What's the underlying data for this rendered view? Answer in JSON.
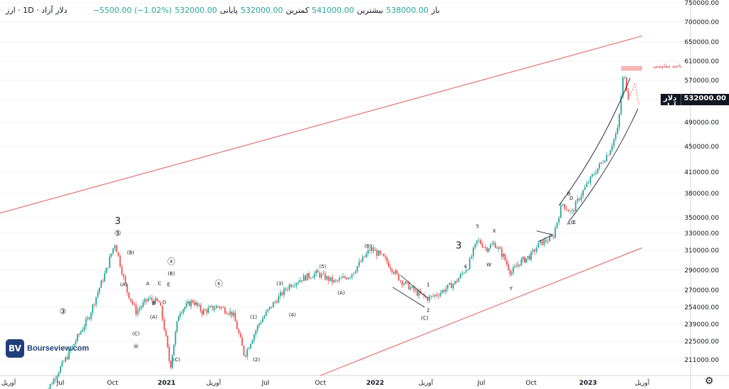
{
  "header": {
    "symbol_title": "دلار آزاد · 1D · ارز",
    "ohlc_open_label": "باز",
    "ohlc_open": "538000.00",
    "ohlc_high_label": "بیشترین",
    "ohlc_high": "541000.00",
    "ohlc_low_label": "کمترین",
    "ohlc_low": "532000.00",
    "ohlc_close_label": "پایانی",
    "ohlc_close": "532000.00",
    "ohlc_change": "−5500.00 (−1.02%)"
  },
  "price_tag": {
    "label": "دلار آزاد",
    "value": "532000.00"
  },
  "colors": {
    "up": "#26a69a",
    "down": "#ef5350",
    "channel": "#e57373",
    "resistance_fill": "#f8b4b4",
    "resistance_text": "#e53935",
    "live_dot": "#26a69a"
  },
  "logo": {
    "mark": "BV",
    "text": "Bourseview.com"
  },
  "annotations": {
    "resistance_label": "ناحیه مقاومتی"
  },
  "chart_data": {
    "type": "candlestick",
    "title": "دلار آزاد",
    "x_range": [
      "2019-03",
      "2023-04"
    ],
    "y_range": [
      200000,
      760000
    ],
    "y_ticks": [
      750000,
      700000,
      650000,
      610000,
      570000,
      532000,
      490000,
      450000,
      410000,
      380000,
      350000,
      330000,
      310000,
      290000,
      270000,
      254000,
      239000,
      225000,
      211000
    ],
    "x_ticks": [
      {
        "label": "آوریل",
        "date": "2020-04"
      },
      {
        "label": "Jul",
        "date": "2020-07"
      },
      {
        "label": "Oct",
        "date": "2020-10"
      },
      {
        "label": "2021",
        "date": "2021-01"
      },
      {
        "label": "آوریل",
        "date": "2021-04"
      },
      {
        "label": "Jul",
        "date": "2021-07"
      },
      {
        "label": "Oct",
        "date": "2021-10"
      },
      {
        "label": "2022",
        "date": "2022-01"
      },
      {
        "label": "آوریل",
        "date": "2022-04"
      },
      {
        "label": "Jul",
        "date": "2022-07"
      },
      {
        "label": "Oct",
        "date": "2022-10"
      },
      {
        "label": "2023",
        "date": "2023-01"
      },
      {
        "label": "آوریل",
        "date": "2023-04"
      }
    ],
    "price_path": [
      [
        "2020-06-01",
        185000
      ],
      [
        "2020-07-15",
        215000
      ],
      [
        "2020-08-20",
        245000
      ],
      [
        "2020-09-20",
        290000
      ],
      [
        "2020-10-05",
        318000
      ],
      [
        "2020-10-25",
        270000
      ],
      [
        "2020-11-10",
        250000
      ],
      [
        "2020-12-01",
        262000
      ],
      [
        "2020-12-20",
        258000
      ],
      [
        "2021-01-08",
        205000
      ],
      [
        "2021-01-25",
        250000
      ],
      [
        "2021-02-20",
        260000
      ],
      [
        "2021-03-10",
        250000
      ],
      [
        "2021-04-10",
        255000
      ],
      [
        "2021-05-05",
        248000
      ],
      [
        "2021-05-25",
        214000
      ],
      [
        "2021-06-20",
        240000
      ],
      [
        "2021-07-15",
        258000
      ],
      [
        "2021-08-10",
        275000
      ],
      [
        "2021-09-01",
        282000
      ],
      [
        "2021-09-25",
        287000
      ],
      [
        "2021-10-25",
        278000
      ],
      [
        "2021-11-20",
        285000
      ],
      [
        "2021-12-10",
        300000
      ],
      [
        "2021-12-25",
        312000
      ],
      [
        "2022-01-20",
        300000
      ],
      [
        "2022-02-15",
        280000
      ],
      [
        "2022-03-15",
        268000
      ],
      [
        "2022-04-05",
        262000
      ],
      [
        "2022-04-25",
        268000
      ],
      [
        "2022-05-20",
        278000
      ],
      [
        "2022-06-10",
        295000
      ],
      [
        "2022-06-25",
        322000
      ],
      [
        "2022-07-10",
        312000
      ],
      [
        "2022-07-25",
        318000
      ],
      [
        "2022-08-10",
        305000
      ],
      [
        "2022-08-25",
        287000
      ],
      [
        "2022-09-10",
        298000
      ],
      [
        "2022-10-01",
        305000
      ],
      [
        "2022-10-15",
        318000
      ],
      [
        "2022-11-05",
        325000
      ],
      [
        "2022-11-20",
        368000
      ],
      [
        "2022-12-05",
        355000
      ],
      [
        "2022-12-20",
        378000
      ],
      [
        "2023-01-05",
        400000
      ],
      [
        "2023-01-20",
        420000
      ],
      [
        "2023-02-05",
        442000
      ],
      [
        "2023-02-20",
        480000
      ],
      [
        "2023-03-01",
        585000
      ],
      [
        "2023-03-05",
        560000
      ],
      [
        "2023-03-10",
        532000
      ]
    ],
    "upper_channel": [
      [
        "2019-03-01",
        287000
      ],
      [
        "2023-04-01",
        665000
      ]
    ],
    "lower_channel": [
      [
        "2021-10-01",
        200000
      ],
      [
        "2023-04-01",
        313000
      ]
    ],
    "upper_channel_color": "#e57373",
    "resistance_zone": {
      "y_low": 590000,
      "y_high": 600000,
      "x_from": "2023-02-25",
      "x_to": "2023-04-01",
      "label": "ناحیه مقاومتی"
    },
    "wave_labels": [
      {
        "text": "3",
        "date": "2020-10-10",
        "price": 342000
      },
      {
        "text": "⑤",
        "date": "2020-10-10",
        "price": 327000
      },
      {
        "text": "③",
        "date": "2020-07-05",
        "price": 248000
      },
      {
        "text": "(B)",
        "date": "2020-11-01",
        "price": 306000
      },
      {
        "text": "(A)",
        "date": "2020-10-20",
        "price": 274000
      },
      {
        "text": "(A)",
        "date": "2020-12-10",
        "price": 244000
      },
      {
        "text": "(C)",
        "date": "2020-11-10",
        "price": 230000
      },
      {
        "text": "Ⓦ",
        "date": "2020-11-10",
        "price": 220000
      },
      {
        "text": "A",
        "date": "2020-11-30",
        "price": 275000
      },
      {
        "text": "C",
        "date": "2020-12-20",
        "price": 275000
      },
      {
        "text": "E",
        "date": "2021-01-05",
        "price": 274000
      },
      {
        "text": "B",
        "date": "2020-12-10",
        "price": 256000
      },
      {
        "text": "D",
        "date": "2020-12-28",
        "price": 257000
      },
      {
        "text": "ⓧ",
        "date": "2021-01-10",
        "price": 296000
      },
      {
        "text": "(B)",
        "date": "2021-01-10",
        "price": 285000
      },
      {
        "text": "(C)",
        "date": "2021-01-20",
        "price": 210000
      },
      {
        "text": "ⓧ",
        "date": "2021-04-10",
        "price": 274000
      },
      {
        "text": "(1)",
        "date": "2021-06-10",
        "price": 244000
      },
      {
        "text": "(2)",
        "date": "2021-06-15",
        "price": 210000
      },
      {
        "text": "(3)",
        "date": "2021-07-25",
        "price": 275000
      },
      {
        "text": "(4)",
        "date": "2021-08-15",
        "price": 246000
      },
      {
        "text": "(5)",
        "date": "2021-10-05",
        "price": 292000
      },
      {
        "text": "(A)",
        "date": "2021-11-05",
        "price": 266000
      },
      {
        "text": "(B)",
        "date": "2021-12-20",
        "price": 313000
      },
      {
        "text": "1",
        "date": "2022-04-05",
        "price": 274000
      },
      {
        "text": "2",
        "date": "2022-04-05",
        "price": 250000
      },
      {
        "text": "(C)",
        "date": "2022-03-30",
        "price": 243000
      },
      {
        "text": "3",
        "date": "2022-05-25",
        "price": 312000
      },
      {
        "text": "4",
        "date": "2022-06-05",
        "price": 292000
      },
      {
        "text": "5",
        "date": "2022-06-25",
        "price": 337000
      },
      {
        "text": "W",
        "date": "2022-07-15",
        "price": 294000
      },
      {
        "text": "X",
        "date": "2022-07-25",
        "price": 331000
      },
      {
        "text": "Y",
        "date": "2022-08-25",
        "price": 270000
      },
      {
        "text": "B",
        "date": "2022-12-01",
        "price": 378000
      },
      {
        "text": "D",
        "date": "2022-12-05",
        "price": 372000
      },
      {
        "text": "A",
        "date": "2022-12-01",
        "price": 341000
      },
      {
        "text": "C",
        "date": "2022-12-07",
        "price": 342000
      },
      {
        "text": "E",
        "date": "2022-12-10",
        "price": 342000
      }
    ]
  }
}
